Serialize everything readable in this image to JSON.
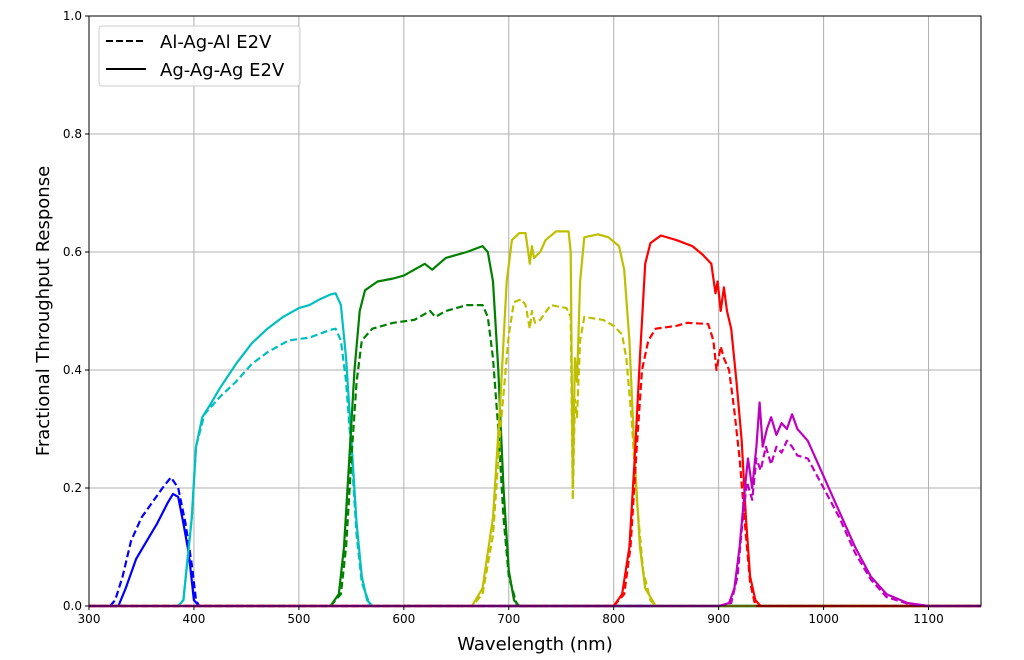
{
  "chart_data": {
    "type": "line",
    "title": "",
    "xlabel": "Wavelength (nm)",
    "ylabel": "Fractional Throughput Response",
    "xlim": [
      300,
      1150
    ],
    "ylim": [
      0.0,
      1.0
    ],
    "x_ticks": [
      "300",
      "400",
      "500",
      "600",
      "700",
      "800",
      "900",
      "1000",
      "1100"
    ],
    "y_ticks": [
      "0.0",
      "0.2",
      "0.4",
      "0.6",
      "0.8",
      "1.0"
    ],
    "grid": true,
    "legend": {
      "placement": "top-left",
      "entries": [
        {
          "label": "Al-Ag-Al E2V",
          "style": "dashed"
        },
        {
          "label": "Ag-Ag-Ag E2V",
          "style": "solid"
        }
      ]
    },
    "series": [
      {
        "color": "#0000ff",
        "style": "solid",
        "points": [
          [
            300,
            0
          ],
          [
            328,
            0
          ],
          [
            335,
            0.03
          ],
          [
            345,
            0.08
          ],
          [
            355,
            0.11
          ],
          [
            365,
            0.14
          ],
          [
            375,
            0.175
          ],
          [
            380,
            0.19
          ],
          [
            385,
            0.185
          ],
          [
            390,
            0.14
          ],
          [
            395,
            0.09
          ],
          [
            400,
            0.01
          ],
          [
            405,
            0
          ],
          [
            1150,
            0
          ]
        ]
      },
      {
        "color": "#0000ff",
        "style": "dashed",
        "points": [
          [
            300,
            0
          ],
          [
            320,
            0
          ],
          [
            325,
            0.01
          ],
          [
            332,
            0.05
          ],
          [
            340,
            0.11
          ],
          [
            350,
            0.15
          ],
          [
            360,
            0.175
          ],
          [
            370,
            0.2
          ],
          [
            378,
            0.218
          ],
          [
            385,
            0.2
          ],
          [
            392,
            0.14
          ],
          [
            398,
            0.07
          ],
          [
            402,
            0.01
          ],
          [
            405,
            0
          ],
          [
            1150,
            0
          ]
        ]
      },
      {
        "color": "#00bfbf",
        "style": "solid",
        "points": [
          [
            300,
            0
          ],
          [
            385,
            0
          ],
          [
            390,
            0.01
          ],
          [
            398,
            0.15
          ],
          [
            402,
            0.27
          ],
          [
            408,
            0.32
          ],
          [
            415,
            0.34
          ],
          [
            425,
            0.37
          ],
          [
            440,
            0.41
          ],
          [
            455,
            0.445
          ],
          [
            470,
            0.47
          ],
          [
            485,
            0.49
          ],
          [
            500,
            0.505
          ],
          [
            510,
            0.51
          ],
          [
            520,
            0.52
          ],
          [
            530,
            0.528
          ],
          [
            535,
            0.53
          ],
          [
            540,
            0.51
          ],
          [
            545,
            0.42
          ],
          [
            550,
            0.28
          ],
          [
            555,
            0.14
          ],
          [
            560,
            0.05
          ],
          [
            565,
            0.01
          ],
          [
            570,
            0
          ],
          [
            1150,
            0
          ]
        ]
      },
      {
        "color": "#00bfbf",
        "style": "dashed",
        "points": [
          [
            300,
            0
          ],
          [
            385,
            0
          ],
          [
            390,
            0.01
          ],
          [
            398,
            0.15
          ],
          [
            402,
            0.27
          ],
          [
            410,
            0.325
          ],
          [
            425,
            0.355
          ],
          [
            440,
            0.38
          ],
          [
            455,
            0.41
          ],
          [
            470,
            0.43
          ],
          [
            490,
            0.45
          ],
          [
            510,
            0.455
          ],
          [
            530,
            0.468
          ],
          [
            535,
            0.47
          ],
          [
            540,
            0.45
          ],
          [
            545,
            0.38
          ],
          [
            550,
            0.26
          ],
          [
            555,
            0.12
          ],
          [
            560,
            0.04
          ],
          [
            568,
            0
          ],
          [
            1150,
            0
          ]
        ]
      },
      {
        "color": "#008000",
        "style": "solid",
        "points": [
          [
            300,
            0
          ],
          [
            530,
            0
          ],
          [
            538,
            0.02
          ],
          [
            543,
            0.1
          ],
          [
            548,
            0.25
          ],
          [
            553,
            0.4
          ],
          [
            558,
            0.5
          ],
          [
            563,
            0.535
          ],
          [
            575,
            0.55
          ],
          [
            590,
            0.555
          ],
          [
            600,
            0.56
          ],
          [
            620,
            0.58
          ],
          [
            627,
            0.57
          ],
          [
            640,
            0.59
          ],
          [
            660,
            0.6
          ],
          [
            675,
            0.61
          ],
          [
            680,
            0.6
          ],
          [
            685,
            0.55
          ],
          [
            690,
            0.4
          ],
          [
            695,
            0.2
          ],
          [
            700,
            0.06
          ],
          [
            705,
            0.01
          ],
          [
            710,
            0
          ],
          [
            1150,
            0
          ]
        ]
      },
      {
        "color": "#008000",
        "style": "dashed",
        "points": [
          [
            300,
            0
          ],
          [
            530,
            0
          ],
          [
            540,
            0.02
          ],
          [
            545,
            0.1
          ],
          [
            550,
            0.25
          ],
          [
            555,
            0.38
          ],
          [
            560,
            0.45
          ],
          [
            570,
            0.47
          ],
          [
            590,
            0.48
          ],
          [
            610,
            0.485
          ],
          [
            625,
            0.5
          ],
          [
            630,
            0.49
          ],
          [
            640,
            0.5
          ],
          [
            660,
            0.51
          ],
          [
            675,
            0.51
          ],
          [
            680,
            0.49
          ],
          [
            685,
            0.42
          ],
          [
            690,
            0.3
          ],
          [
            695,
            0.15
          ],
          [
            700,
            0.05
          ],
          [
            708,
            0
          ],
          [
            1150,
            0
          ]
        ]
      },
      {
        "color": "#bfbf00",
        "style": "solid",
        "points": [
          [
            300,
            0
          ],
          [
            665,
            0
          ],
          [
            675,
            0.03
          ],
          [
            685,
            0.15
          ],
          [
            692,
            0.35
          ],
          [
            698,
            0.55
          ],
          [
            703,
            0.62
          ],
          [
            710,
            0.632
          ],
          [
            716,
            0.632
          ],
          [
            720,
            0.58
          ],
          [
            722,
            0.61
          ],
          [
            724,
            0.59
          ],
          [
            730,
            0.6
          ],
          [
            735,
            0.62
          ],
          [
            745,
            0.635
          ],
          [
            757,
            0.635
          ],
          [
            759,
            0.6
          ],
          [
            761,
            0.2
          ],
          [
            763,
            0.42
          ],
          [
            765,
            0.38
          ],
          [
            768,
            0.55
          ],
          [
            772,
            0.625
          ],
          [
            785,
            0.63
          ],
          [
            795,
            0.625
          ],
          [
            805,
            0.61
          ],
          [
            810,
            0.57
          ],
          [
            815,
            0.45
          ],
          [
            820,
            0.25
          ],
          [
            825,
            0.1
          ],
          [
            830,
            0.03
          ],
          [
            840,
            0
          ],
          [
            1150,
            0
          ]
        ]
      },
      {
        "color": "#bfbf00",
        "style": "dashed",
        "points": [
          [
            300,
            0
          ],
          [
            665,
            0
          ],
          [
            675,
            0.02
          ],
          [
            685,
            0.12
          ],
          [
            692,
            0.3
          ],
          [
            700,
            0.46
          ],
          [
            705,
            0.515
          ],
          [
            712,
            0.52
          ],
          [
            716,
            0.51
          ],
          [
            720,
            0.47
          ],
          [
            722,
            0.5
          ],
          [
            725,
            0.48
          ],
          [
            730,
            0.485
          ],
          [
            740,
            0.51
          ],
          [
            755,
            0.505
          ],
          [
            759,
            0.49
          ],
          [
            761,
            0.18
          ],
          [
            763,
            0.35
          ],
          [
            765,
            0.32
          ],
          [
            768,
            0.45
          ],
          [
            772,
            0.49
          ],
          [
            790,
            0.485
          ],
          [
            800,
            0.475
          ],
          [
            808,
            0.46
          ],
          [
            812,
            0.42
          ],
          [
            817,
            0.32
          ],
          [
            822,
            0.18
          ],
          [
            828,
            0.06
          ],
          [
            835,
            0.01
          ],
          [
            840,
            0
          ],
          [
            1150,
            0
          ]
        ]
      },
      {
        "color": "#ff0000",
        "style": "solid",
        "points": [
          [
            300,
            0
          ],
          [
            800,
            0
          ],
          [
            808,
            0.02
          ],
          [
            815,
            0.1
          ],
          [
            820,
            0.25
          ],
          [
            825,
            0.42
          ],
          [
            830,
            0.58
          ],
          [
            835,
            0.615
          ],
          [
            845,
            0.628
          ],
          [
            860,
            0.62
          ],
          [
            875,
            0.61
          ],
          [
            885,
            0.595
          ],
          [
            893,
            0.58
          ],
          [
            897,
            0.53
          ],
          [
            899,
            0.55
          ],
          [
            902,
            0.5
          ],
          [
            905,
            0.54
          ],
          [
            908,
            0.5
          ],
          [
            912,
            0.47
          ],
          [
            917,
            0.38
          ],
          [
            922,
            0.28
          ],
          [
            926,
            0.15
          ],
          [
            930,
            0.05
          ],
          [
            935,
            0.01
          ],
          [
            940,
            0
          ],
          [
            1150,
            0
          ]
        ]
      },
      {
        "color": "#ff0000",
        "style": "dashed",
        "points": [
          [
            300,
            0
          ],
          [
            800,
            0
          ],
          [
            810,
            0.02
          ],
          [
            816,
            0.1
          ],
          [
            822,
            0.27
          ],
          [
            827,
            0.4
          ],
          [
            833,
            0.45
          ],
          [
            840,
            0.47
          ],
          [
            860,
            0.475
          ],
          [
            870,
            0.48
          ],
          [
            890,
            0.478
          ],
          [
            895,
            0.45
          ],
          [
            898,
            0.4
          ],
          [
            902,
            0.44
          ],
          [
            905,
            0.42
          ],
          [
            910,
            0.4
          ],
          [
            915,
            0.33
          ],
          [
            920,
            0.25
          ],
          [
            925,
            0.14
          ],
          [
            930,
            0.04
          ],
          [
            935,
            0
          ],
          [
            1150,
            0
          ]
        ]
      },
      {
        "color": "#bf00bf",
        "style": "solid",
        "points": [
          [
            300,
            0
          ],
          [
            900,
            0
          ],
          [
            910,
            0.005
          ],
          [
            915,
            0.03
          ],
          [
            920,
            0.1
          ],
          [
            925,
            0.2
          ],
          [
            928,
            0.25
          ],
          [
            932,
            0.2
          ],
          [
            936,
            0.27
          ],
          [
            939,
            0.345
          ],
          [
            942,
            0.27
          ],
          [
            946,
            0.3
          ],
          [
            950,
            0.32
          ],
          [
            955,
            0.29
          ],
          [
            960,
            0.31
          ],
          [
            965,
            0.3
          ],
          [
            970,
            0.325
          ],
          [
            975,
            0.3
          ],
          [
            985,
            0.28
          ],
          [
            1000,
            0.22
          ],
          [
            1015,
            0.16
          ],
          [
            1030,
            0.1
          ],
          [
            1045,
            0.05
          ],
          [
            1060,
            0.02
          ],
          [
            1080,
            0.005
          ],
          [
            1100,
            0
          ],
          [
            1150,
            0
          ]
        ]
      },
      {
        "color": "#bf00bf",
        "style": "dashed",
        "points": [
          [
            300,
            0
          ],
          [
            900,
            0
          ],
          [
            912,
            0.005
          ],
          [
            918,
            0.05
          ],
          [
            923,
            0.15
          ],
          [
            927,
            0.21
          ],
          [
            932,
            0.18
          ],
          [
            936,
            0.25
          ],
          [
            940,
            0.23
          ],
          [
            945,
            0.27
          ],
          [
            950,
            0.24
          ],
          [
            955,
            0.27
          ],
          [
            960,
            0.26
          ],
          [
            965,
            0.28
          ],
          [
            970,
            0.27
          ],
          [
            975,
            0.255
          ],
          [
            985,
            0.25
          ],
          [
            1000,
            0.2
          ],
          [
            1015,
            0.15
          ],
          [
            1030,
            0.09
          ],
          [
            1045,
            0.045
          ],
          [
            1060,
            0.015
          ],
          [
            1080,
            0.004
          ],
          [
            1100,
            0
          ],
          [
            1150,
            0
          ]
        ]
      }
    ]
  }
}
